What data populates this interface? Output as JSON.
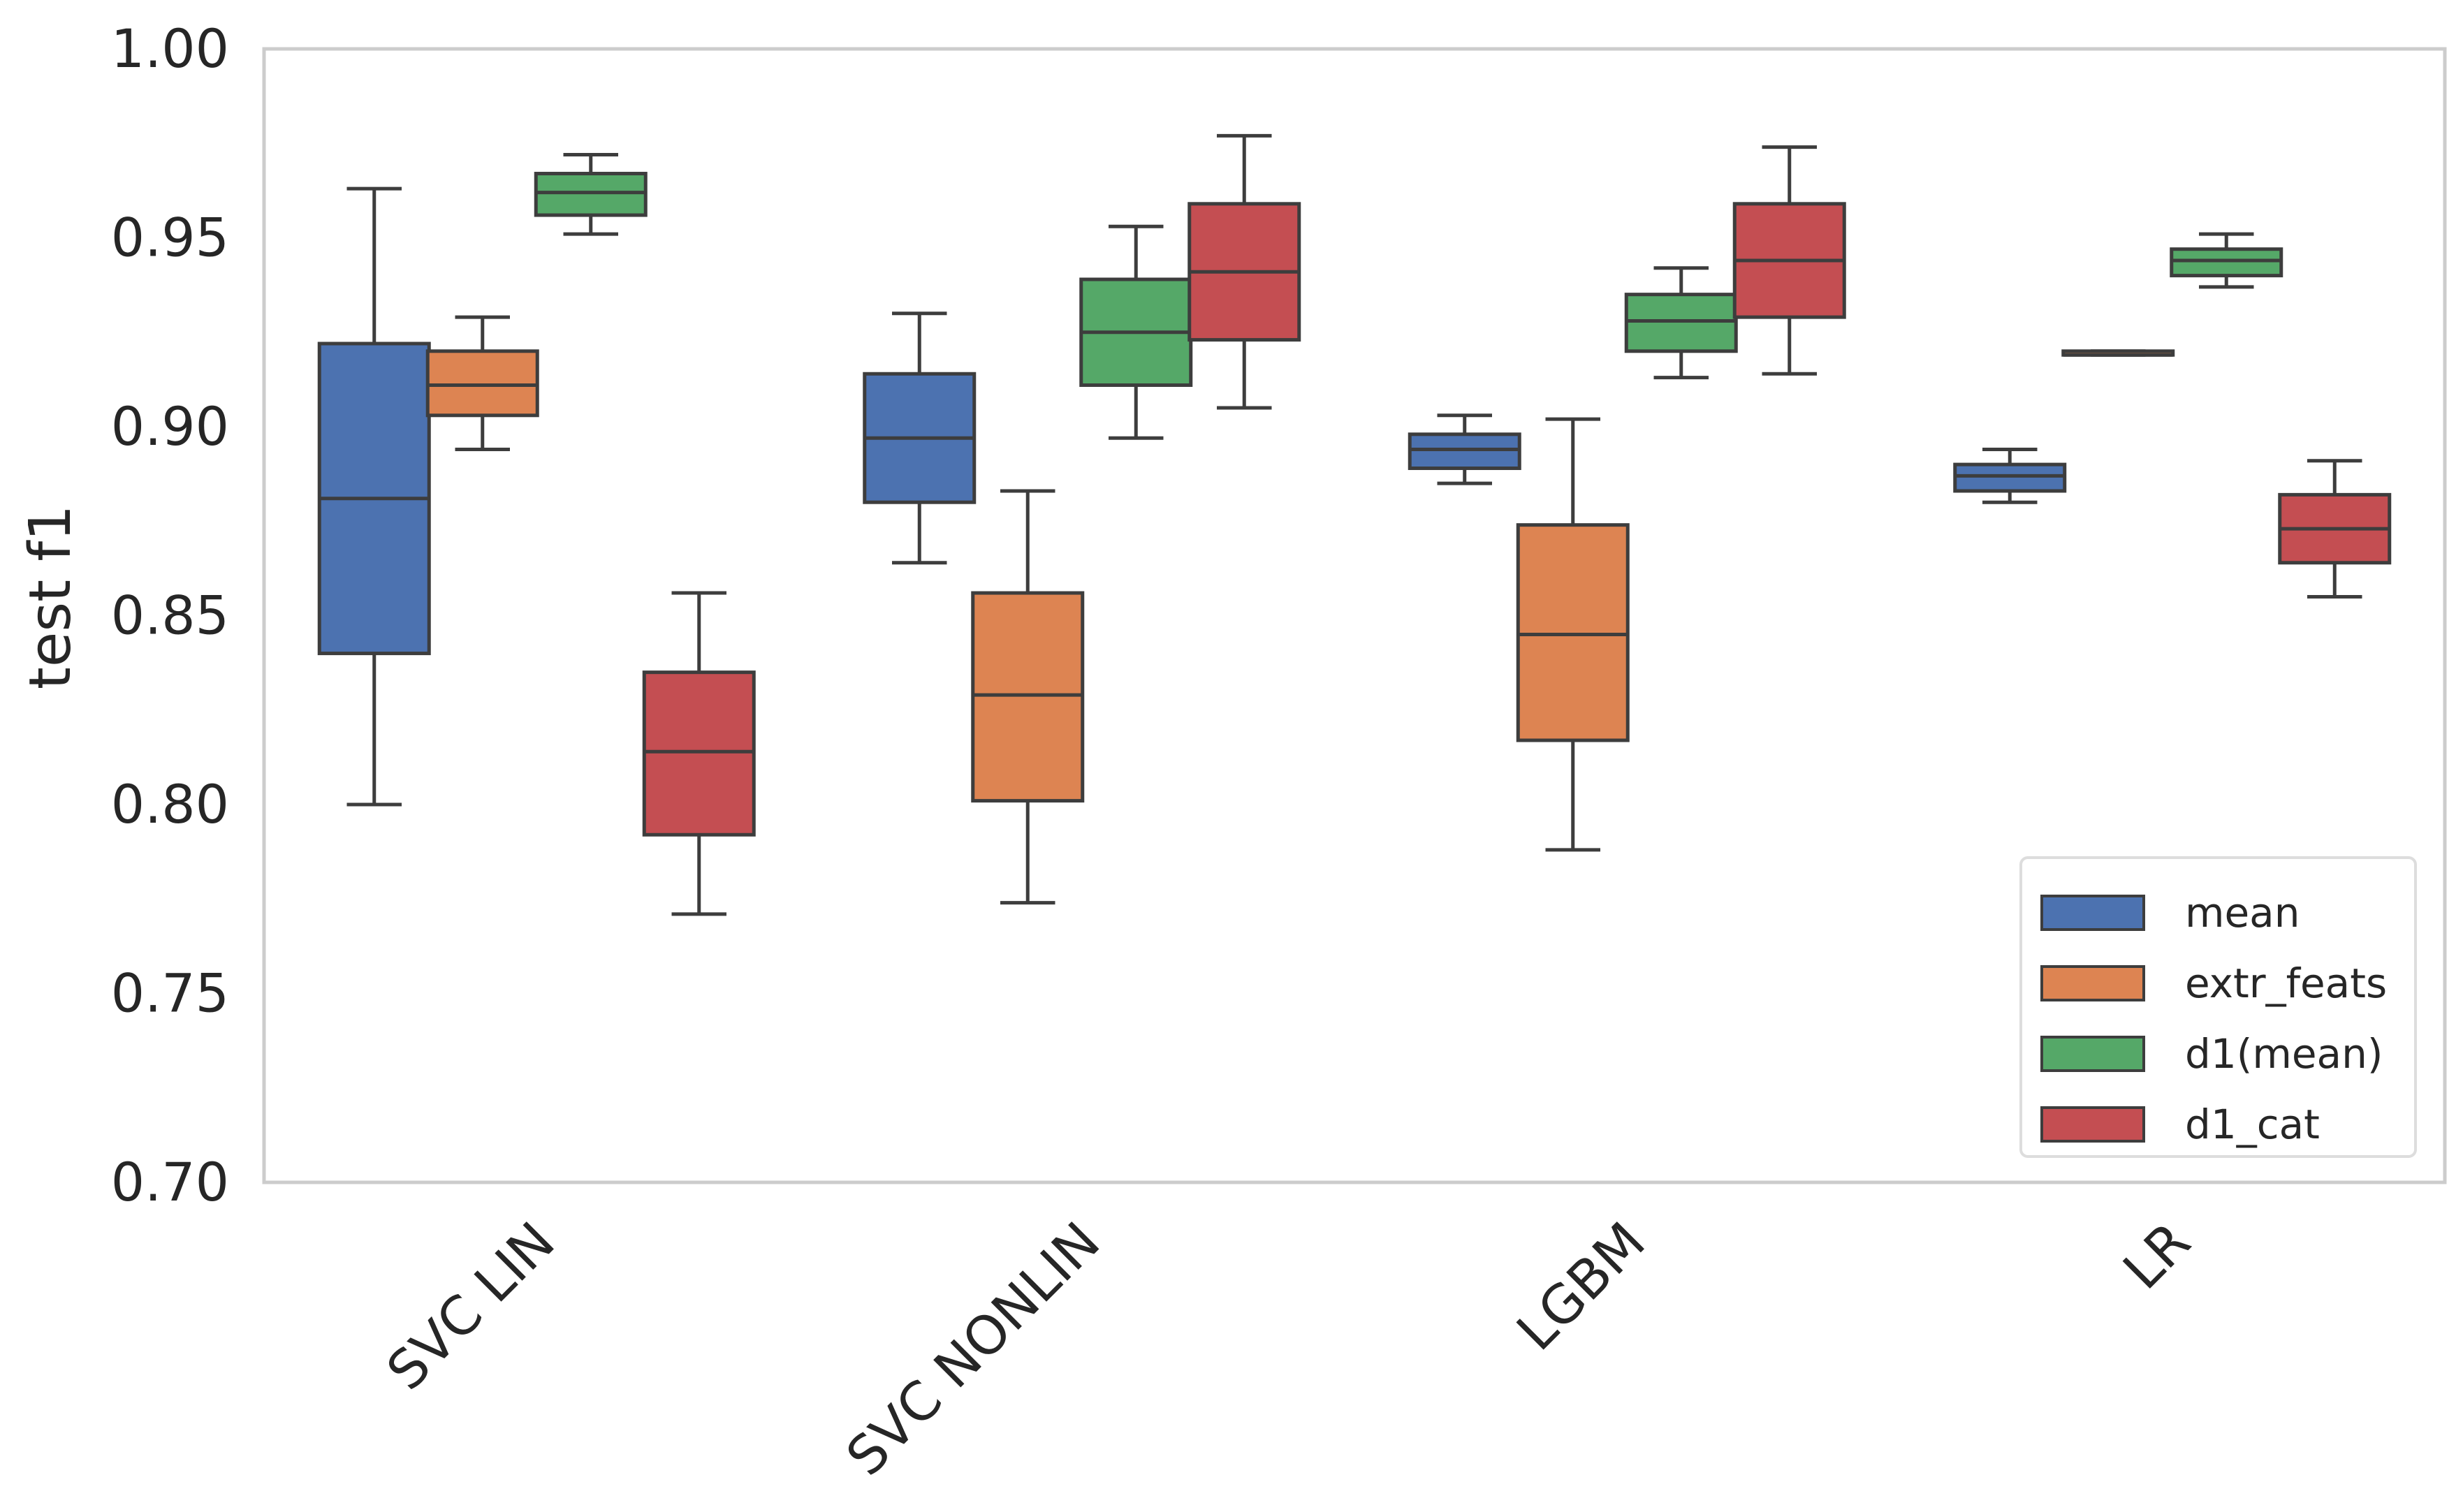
{
  "chart_data": {
    "type": "boxplot",
    "title": "",
    "xlabel": "",
    "ylabel": "test f1",
    "ylim": [
      0.7,
      1.0
    ],
    "yticks": [
      "0.70",
      "0.75",
      "0.80",
      "0.85",
      "0.90",
      "0.95",
      "1.00"
    ],
    "ytick_values": [
      0.7,
      0.75,
      0.8,
      0.85,
      0.9,
      0.95,
      1.0
    ],
    "categories": [
      "SVC LIN",
      "SVC NONLIN",
      "LGBM",
      "LR"
    ],
    "grid": false,
    "legend_position": "bottom-right",
    "series": [
      {
        "name": "mean",
        "color": "#4C72B0",
        "boxes": [
          {
            "whislo": 0.8,
            "q1": 0.84,
            "med": 0.881,
            "q3": 0.922,
            "whishi": 0.963
          },
          {
            "whislo": 0.864,
            "q1": 0.88,
            "med": 0.897,
            "q3": 0.914,
            "whishi": 0.93
          },
          {
            "whislo": 0.885,
            "q1": 0.889,
            "med": 0.894,
            "q3": 0.898,
            "whishi": 0.903
          },
          {
            "whislo": 0.88,
            "q1": 0.883,
            "med": 0.887,
            "q3": 0.89,
            "whishi": 0.894
          }
        ]
      },
      {
        "name": "extr_feats",
        "color": "#DD8452",
        "boxes": [
          {
            "whislo": 0.894,
            "q1": 0.903,
            "med": 0.911,
            "q3": 0.92,
            "whishi": 0.929
          },
          {
            "whislo": 0.774,
            "q1": 0.801,
            "med": 0.829,
            "q3": 0.856,
            "whishi": 0.883
          },
          {
            "whislo": 0.788,
            "q1": 0.817,
            "med": 0.845,
            "q3": 0.874,
            "whishi": 0.902
          },
          {
            "whislo": 0.919,
            "q1": 0.919,
            "med": 0.919,
            "q3": 0.92,
            "whishi": 0.92
          }
        ]
      },
      {
        "name": "d1(mean)",
        "color": "#55A868",
        "boxes": [
          {
            "whislo": 0.951,
            "q1": 0.956,
            "med": 0.962,
            "q3": 0.967,
            "whishi": 0.972
          },
          {
            "whislo": 0.897,
            "q1": 0.911,
            "med": 0.925,
            "q3": 0.939,
            "whishi": 0.953
          },
          {
            "whislo": 0.913,
            "q1": 0.92,
            "med": 0.928,
            "q3": 0.935,
            "whishi": 0.942
          },
          {
            "whislo": 0.937,
            "q1": 0.94,
            "med": 0.944,
            "q3": 0.947,
            "whishi": 0.951
          }
        ]
      },
      {
        "name": "d1_cat",
        "color": "#C44E52",
        "boxes": [
          {
            "whislo": 0.771,
            "q1": 0.792,
            "med": 0.814,
            "q3": 0.835,
            "whishi": 0.856
          },
          {
            "whislo": 0.905,
            "q1": 0.923,
            "med": 0.941,
            "q3": 0.959,
            "whishi": 0.977
          },
          {
            "whislo": 0.914,
            "q1": 0.929,
            "med": 0.944,
            "q3": 0.959,
            "whishi": 0.974
          },
          {
            "whislo": 0.855,
            "q1": 0.864,
            "med": 0.873,
            "q3": 0.882,
            "whishi": 0.891
          }
        ]
      }
    ]
  }
}
